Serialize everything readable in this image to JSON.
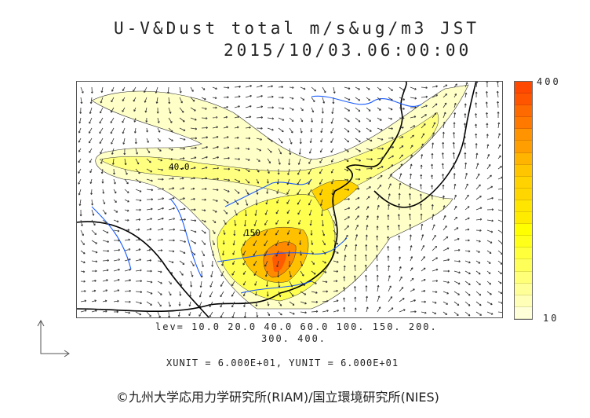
{
  "title": {
    "line1": "U-V&Dust total m/s&ug/m3 JST",
    "line2": "2015/10/03.06:00:00"
  },
  "map": {
    "contour_labels": [
      "40.0",
      "150"
    ],
    "colors": {
      "coastline": "#000000",
      "rivers": "#1a5cff",
      "frame": "#555555"
    }
  },
  "colorbar": {
    "max_label": "400",
    "min_label": "10",
    "colors": [
      "#ff4800",
      "#ff5500",
      "#ff6a00",
      "#ff7800",
      "#ff9400",
      "#ff9e00",
      "#ffb400",
      "#ffc600",
      "#ffd200",
      "#ffd600",
      "#ffe600",
      "#ffeb00",
      "#ffff00",
      "#ffff1a",
      "#ffff3c",
      "#ffff5a",
      "#ffff78",
      "#ffff98",
      "#ffffb8",
      "#ffffd8"
    ]
  },
  "levels": {
    "line1": "lev= 10.0 20.0 40.0 60.0 100. 150. 200.",
    "line2": "300. 400."
  },
  "units": "XUNIT = 6.000E+01, YUNIT = 6.000E+01",
  "credit": "©九州大学応用力学研究所(RIAM)/国立環境研究所(NIES)"
}
